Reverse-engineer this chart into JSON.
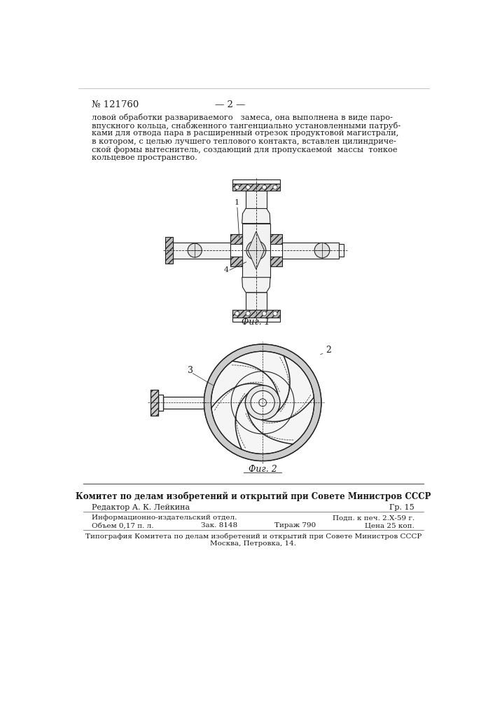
{
  "page_number": "№ 121760",
  "page_num_right": "— 2 —",
  "body_text": [
    "ловой обработки развариваемого   замеса, она выполнена в виде паро-",
    "впускного кольца, снабженного тангенциально установленными патруб-",
    "ками для отвода пара в расширенный отрезок продуктовой магистрали,",
    "в котором, с целью лучшего теплового контакта, вставлен цилиндриче-",
    "ской формы вытеснитель, создающий для пропускаемой  массы  тонкое",
    "кольцевое пространство."
  ],
  "fig1_caption": "Фиг. 1",
  "fig2_caption": "Фиг. 2",
  "footer_bold": "Комитет по делам изобретений и открытий при Совете Министров СССР",
  "footer_line1_left": "Редактор А. К. Лейкина",
  "footer_line1_right": "Гр. 15",
  "footer_line2_left": "Информационно-издательский отдел.",
  "footer_line2_right": "Подп. к печ. 2.Х-59 г.",
  "footer_line3_left": "Объем 0,17 п. л.",
  "footer_line3_mid1": "Зак. 8148",
  "footer_line3_mid2": "Тираж 790",
  "footer_line3_right": "Цена 25 коп.",
  "footer_line4": "Типография Комитета по делам изобретений и открытий при Совете Министров СССР",
  "footer_line5": "Москва, Петровка, 14.",
  "bg_color": "#ffffff",
  "text_color": "#1a1a1a",
  "line_color": "#555555"
}
